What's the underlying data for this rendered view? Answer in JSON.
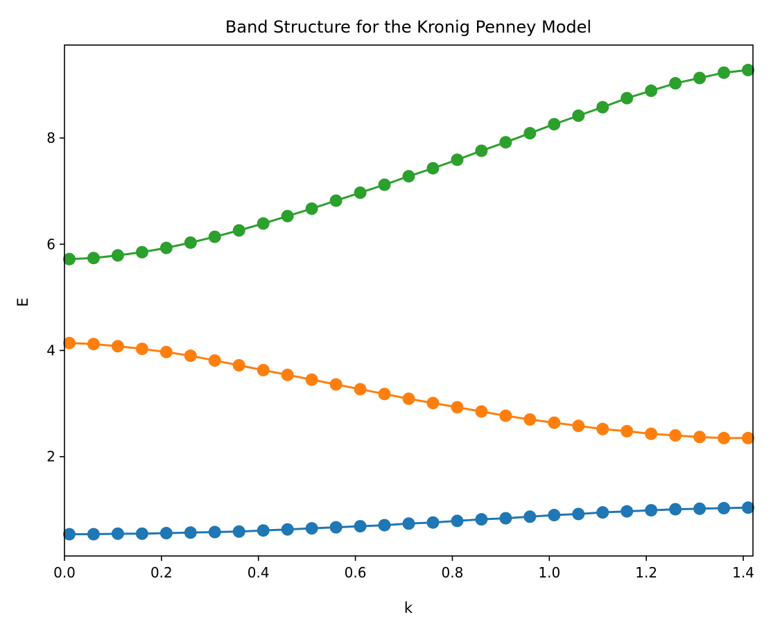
{
  "chart_data": {
    "type": "line",
    "title": "Band Structure for the Kronig Penney Model",
    "xlabel": "k",
    "ylabel": "E",
    "xlim": [
      0,
      1.42
    ],
    "ylim": [
      0.13,
      9.75
    ],
    "xticks": [
      0.0,
      0.2,
      0.4,
      0.6,
      0.8,
      1.0,
      1.2,
      1.4
    ],
    "xtick_labels": [
      "0.0",
      "0.2",
      "0.4",
      "0.6",
      "0.8",
      "1.0",
      "1.2",
      "1.4"
    ],
    "yticks": [
      2,
      4,
      6,
      8
    ],
    "ytick_labels": [
      "2",
      "4",
      "6",
      "8"
    ],
    "grid": false,
    "marker": "circle",
    "x": [
      0.01,
      0.06,
      0.11,
      0.16,
      0.21,
      0.26,
      0.31,
      0.36,
      0.41,
      0.46,
      0.51,
      0.56,
      0.61,
      0.66,
      0.71,
      0.76,
      0.81,
      0.86,
      0.91,
      0.96,
      1.01,
      1.06,
      1.11,
      1.16,
      1.21,
      1.26,
      1.31,
      1.36,
      1.41
    ],
    "series": [
      {
        "color": "#1f77b4",
        "values": [
          0.54,
          0.54,
          0.55,
          0.55,
          0.56,
          0.57,
          0.58,
          0.59,
          0.61,
          0.63,
          0.65,
          0.67,
          0.69,
          0.71,
          0.74,
          0.76,
          0.79,
          0.82,
          0.84,
          0.87,
          0.9,
          0.92,
          0.95,
          0.97,
          0.99,
          1.01,
          1.02,
          1.03,
          1.04
        ]
      },
      {
        "color": "#ff7f0e",
        "values": [
          4.14,
          4.12,
          4.08,
          4.03,
          3.97,
          3.9,
          3.81,
          3.72,
          3.63,
          3.54,
          3.45,
          3.36,
          3.27,
          3.18,
          3.09,
          3.01,
          2.93,
          2.85,
          2.77,
          2.7,
          2.64,
          2.58,
          2.52,
          2.48,
          2.43,
          2.4,
          2.37,
          2.35,
          2.35
        ]
      },
      {
        "color": "#2ca02c",
        "values": [
          5.72,
          5.74,
          5.79,
          5.85,
          5.93,
          6.03,
          6.14,
          6.26,
          6.39,
          6.53,
          6.67,
          6.82,
          6.97,
          7.12,
          7.28,
          7.43,
          7.59,
          7.76,
          7.92,
          8.09,
          8.26,
          8.42,
          8.58,
          8.75,
          8.89,
          9.03,
          9.13,
          9.23,
          9.28
        ]
      }
    ]
  }
}
